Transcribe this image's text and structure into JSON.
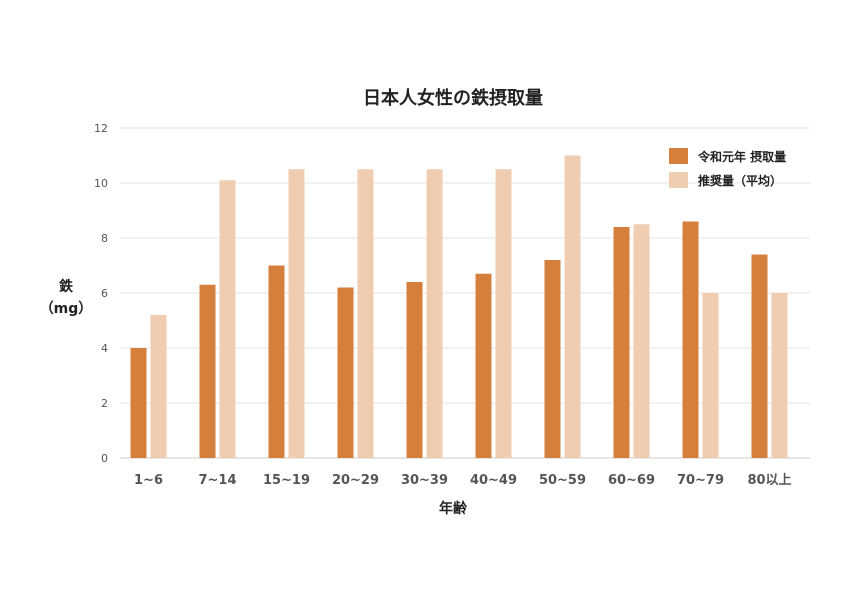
{
  "chart_data": {
    "type": "bar",
    "title": "日本人女性の鉄摂取量",
    "xlabel": "年齢",
    "ylabel_line1": "鉄",
    "ylabel_line2": "（mg）",
    "ylim": [
      0,
      12
    ],
    "yticks": [
      0,
      2,
      4,
      6,
      8,
      10,
      12
    ],
    "grid": true,
    "legend_position": "top-right",
    "categories": [
      "1~6",
      "7~14",
      "15~19",
      "20~29",
      "30~39",
      "40~49",
      "50~59",
      "60~69",
      "70~79",
      "80以上"
    ],
    "series": [
      {
        "name": "令和元年 摂取量",
        "color": "#d47f3c",
        "values": [
          4.0,
          6.3,
          7.0,
          6.2,
          6.4,
          6.7,
          7.2,
          8.4,
          8.6,
          7.4
        ]
      },
      {
        "name": "推奨量（平均）",
        "color": "#f0cdb0",
        "values": [
          5.2,
          10.1,
          10.5,
          10.5,
          10.5,
          10.5,
          11.0,
          8.5,
          6.0,
          6.0
        ]
      }
    ]
  }
}
